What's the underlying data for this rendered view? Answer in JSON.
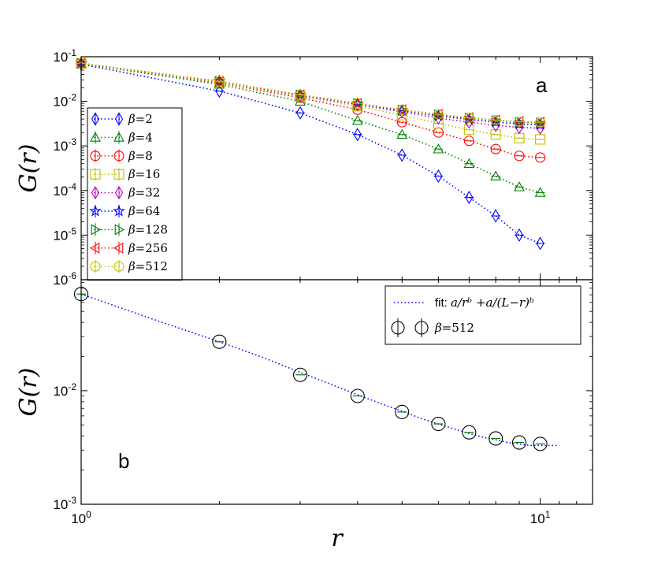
{
  "chart_data": [
    {
      "type": "line",
      "panel": "a",
      "panel_label": "a",
      "xscale": "log",
      "yscale": "log",
      "xlim": [
        1,
        13
      ],
      "ylim": [
        1e-06,
        0.1
      ],
      "ylabel_base": "G",
      "ylabel_var": "r",
      "y_ticks": [
        {
          "base": "10",
          "exp": "-1"
        },
        {
          "base": "10",
          "exp": "-2"
        },
        {
          "base": "10",
          "exp": "-3"
        },
        {
          "base": "10",
          "exp": "-4"
        },
        {
          "base": "10",
          "exp": "-5"
        },
        {
          "base": "10",
          "exp": "-6"
        }
      ],
      "legend_position": "left",
      "x": [
        1,
        2,
        3,
        4,
        5,
        6,
        7,
        8,
        9,
        10
      ],
      "series": [
        {
          "name": "β=2",
          "label_sym": "β",
          "label_val": "=2",
          "color": "#0000ff",
          "marker": "diamond",
          "values": [
            0.068,
            0.017,
            0.0055,
            0.0018,
            0.00062,
            0.00021,
            7e-05,
            2.7e-05,
            1e-05,
            6.5e-06
          ]
        },
        {
          "name": "β=4",
          "label_sym": "β",
          "label_val": "=4",
          "color": "#008000",
          "marker": "triangle-up",
          "values": [
            0.07,
            0.024,
            0.01,
            0.0037,
            0.0018,
            0.00085,
            0.0004,
            0.00021,
            0.00012,
            9e-05
          ]
        },
        {
          "name": "β=8",
          "label_sym": "β",
          "label_val": "=8",
          "color": "#ff0000",
          "marker": "circle",
          "values": [
            0.071,
            0.026,
            0.012,
            0.0065,
            0.0034,
            0.002,
            0.0013,
            0.00085,
            0.0006,
            0.00055
          ]
        },
        {
          "name": "β=16",
          "label_sym": "β",
          "label_val": "=16",
          "color": "#bfbf00",
          "marker": "square",
          "values": [
            0.071,
            0.027,
            0.013,
            0.0078,
            0.0049,
            0.0032,
            0.0023,
            0.0018,
            0.0015,
            0.0014
          ]
        },
        {
          "name": "β=32",
          "label_sym": "β",
          "label_val": "=32",
          "color": "#bf00bf",
          "marker": "diamond",
          "values": [
            0.071,
            0.028,
            0.0135,
            0.0085,
            0.0058,
            0.0042,
            0.0034,
            0.0029,
            0.0026,
            0.0025
          ]
        },
        {
          "name": "β=64",
          "label_sym": "β",
          "label_val": "=64",
          "color": "#0000ff",
          "marker": "star",
          "values": [
            0.071,
            0.028,
            0.0138,
            0.0088,
            0.0062,
            0.0047,
            0.0039,
            0.0034,
            0.0031,
            0.003
          ]
        },
        {
          "name": "β=128",
          "label_sym": "β",
          "label_val": "=128",
          "color": "#008000",
          "marker": "triangle-right",
          "values": [
            0.071,
            0.028,
            0.014,
            0.009,
            0.0064,
            0.005,
            0.0042,
            0.0037,
            0.0034,
            0.0033
          ]
        },
        {
          "name": "β=256",
          "label_sym": "β",
          "label_val": "=256",
          "color": "#ff0000",
          "marker": "triangle-left",
          "values": [
            0.071,
            0.028,
            0.014,
            0.009,
            0.0065,
            0.0051,
            0.0043,
            0.0038,
            0.0035,
            0.0034
          ]
        },
        {
          "name": "β=512",
          "label_sym": "β",
          "label_val": "=512",
          "color": "#bfbf00",
          "marker": "circle",
          "values": [
            0.071,
            0.028,
            0.014,
            0.009,
            0.0065,
            0.0051,
            0.0043,
            0.0038,
            0.0035,
            0.0034
          ]
        }
      ]
    },
    {
      "type": "scatter",
      "panel": "b",
      "panel_label": "b",
      "xscale": "log",
      "yscale": "log",
      "xlim": [
        1,
        13
      ],
      "ylim": [
        0.001,
        0.095
      ],
      "xlabel": "r",
      "ylabel_base": "G",
      "ylabel_var": "r",
      "x_ticks": [
        {
          "base": "10",
          "exp": "0",
          "value": 1
        },
        {
          "base": "10",
          "exp": "1",
          "value": 10
        }
      ],
      "y_ticks": [
        {
          "base": "10",
          "exp": "-2",
          "value": 0.01
        },
        {
          "base": "10",
          "exp": "-3",
          "value": 0.001
        }
      ],
      "legend_position": "top-right",
      "fit": {
        "name": "fit",
        "label_prefix": "fit: ",
        "label_formula": "a/rᵇ +a/(L−r)ᵇ",
        "color": "#0000ff",
        "style": "dotted",
        "x": [
          1,
          1.5,
          2,
          2.5,
          3,
          3.5,
          4,
          4.5,
          5,
          5.5,
          6,
          6.5,
          7,
          7.5,
          8,
          8.5,
          9,
          9.5,
          10,
          10.5,
          11
        ],
        "values": [
          0.071,
          0.04,
          0.027,
          0.0195,
          0.0145,
          0.0114,
          0.0092,
          0.0077,
          0.0066,
          0.0057,
          0.0051,
          0.0046,
          0.0042,
          0.0039,
          0.0037,
          0.0035,
          0.0034,
          0.0033,
          0.0033,
          0.0033,
          0.0033
        ]
      },
      "series": [
        {
          "name": "β=512",
          "label_sym": "β",
          "label_val": "=512",
          "color": "#000000",
          "errcolor": "#008000",
          "marker": "circle",
          "x": [
            1,
            2,
            3,
            4,
            5,
            6,
            7,
            8,
            9,
            10
          ],
          "values": [
            0.071,
            0.027,
            0.0138,
            0.009,
            0.0065,
            0.0051,
            0.0043,
            0.0038,
            0.0035,
            0.0034
          ]
        }
      ]
    }
  ]
}
